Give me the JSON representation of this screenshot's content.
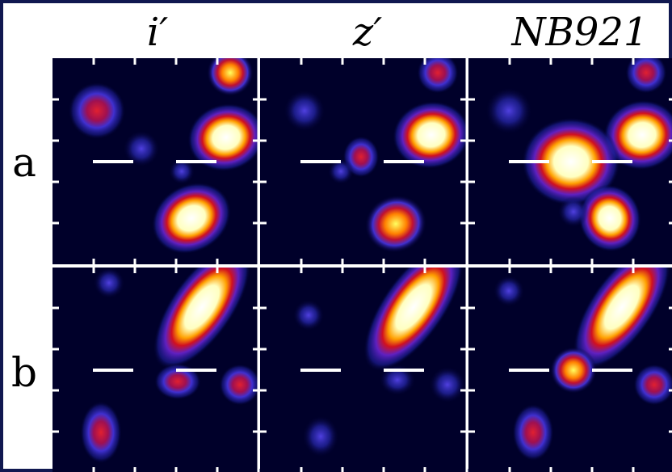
{
  "columns": [
    "i′",
    "z′",
    "NB921"
  ],
  "rows": [
    "a",
    "b"
  ]
}
